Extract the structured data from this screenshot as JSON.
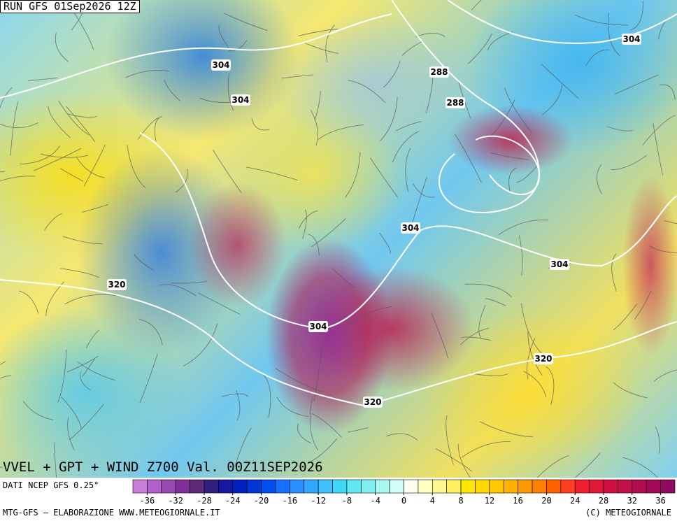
{
  "header": {
    "run": "RUN GFS 01Sep2026 12Z"
  },
  "map": {
    "contour_labels": [
      "304",
      "304",
      "288",
      "288",
      "304",
      "320",
      "304",
      "304",
      "304",
      "320",
      "320"
    ]
  },
  "title": "VVEL + GPT + WIND Z700 Val. 00Z11SEP2026",
  "source": "DATI NCEP GFS 0.25°",
  "colorbar": {
    "range": [
      -38,
      38
    ],
    "ticks": [
      -36,
      -32,
      -28,
      -24,
      -20,
      -16,
      -12,
      -8,
      -4,
      0,
      4,
      8,
      12,
      16,
      20,
      24,
      28,
      32,
      36
    ],
    "colors": [
      "#c87fd8",
      "#b060c8",
      "#9848b0",
      "#803098",
      "#602878",
      "#302080",
      "#1818a0",
      "#0020c0",
      "#0038d8",
      "#0050f0",
      "#1870ff",
      "#2890ff",
      "#30a8ff",
      "#40c0ff",
      "#40d8f8",
      "#60e8f0",
      "#80f0f0",
      "#a8f8f0",
      "#d0fff8",
      "#fffff0",
      "#ffffc0",
      "#fff890",
      "#fff060",
      "#ffe800",
      "#ffd800",
      "#ffc800",
      "#ffb000",
      "#ff9800",
      "#ff8000",
      "#ff6000",
      "#ff4020",
      "#f02030",
      "#e01838",
      "#d01040",
      "#c01048",
      "#b00c50",
      "#a00858",
      "#900860"
    ]
  },
  "footer": {
    "left": "MTG-GFS — ELABORAZIONE WWW.METEOGIORNALE.IT",
    "right": "(C) METEOGIORNALE"
  }
}
